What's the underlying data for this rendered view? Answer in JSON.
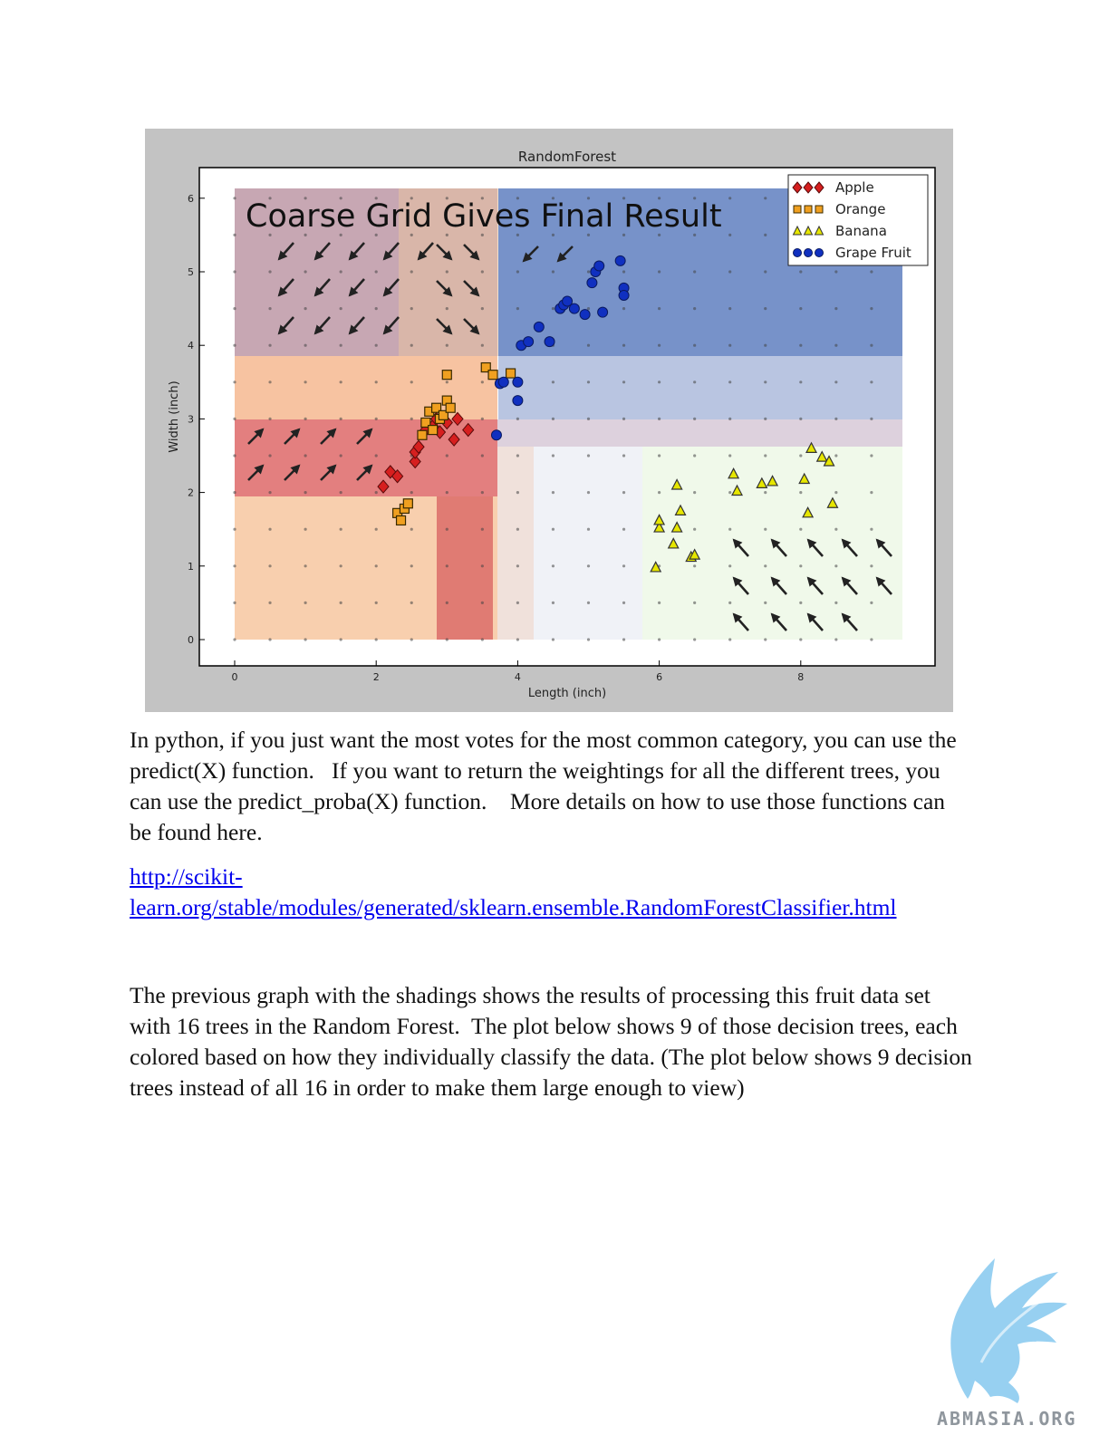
{
  "chart_data": {
    "type": "scatter",
    "title": "RandomForest",
    "overlay_text": "Coarse Grid Gives Final Result",
    "xlabel": "Length (inch)",
    "ylabel": "Width (inch)",
    "xlim": [
      -0.5,
      9.9
    ],
    "ylim": [
      -0.4,
      6.5
    ],
    "x_ticks": [
      0,
      2,
      4,
      6,
      8
    ],
    "y_ticks": [
      0,
      1,
      2,
      3,
      4,
      5,
      6
    ],
    "grid": false,
    "legend_position": "top-right",
    "legend": [
      "Apple",
      "Orange",
      "Banana",
      "Grape Fruit"
    ],
    "series": [
      {
        "name": "Apple",
        "marker": "diamond",
        "color": "#d61f1f",
        "points": [
          [
            2.1,
            2.08
          ],
          [
            2.2,
            2.28
          ],
          [
            2.3,
            2.22
          ],
          [
            2.55,
            2.42
          ],
          [
            2.55,
            2.55
          ],
          [
            2.6,
            2.62
          ],
          [
            2.7,
            2.85
          ],
          [
            2.8,
            2.9
          ],
          [
            2.85,
            3.0
          ],
          [
            2.9,
            2.82
          ],
          [
            3.0,
            2.95
          ],
          [
            3.1,
            2.72
          ],
          [
            3.15,
            3.0
          ],
          [
            3.3,
            2.85
          ]
        ]
      },
      {
        "name": "Orange",
        "marker": "square",
        "color": "#f0a020",
        "points": [
          [
            2.3,
            1.72
          ],
          [
            2.35,
            1.62
          ],
          [
            2.4,
            1.78
          ],
          [
            2.45,
            1.85
          ],
          [
            2.65,
            2.78
          ],
          [
            2.7,
            2.95
          ],
          [
            2.75,
            3.1
          ],
          [
            2.8,
            2.85
          ],
          [
            2.85,
            3.15
          ],
          [
            2.9,
            3.0
          ],
          [
            2.95,
            3.05
          ],
          [
            3.0,
            3.25
          ],
          [
            3.05,
            3.15
          ],
          [
            3.0,
            3.6
          ],
          [
            3.55,
            3.7
          ],
          [
            3.65,
            3.6
          ],
          [
            3.9,
            3.62
          ]
        ]
      },
      {
        "name": "Banana",
        "marker": "triangle",
        "color": "#e6e600",
        "points": [
          [
            5.95,
            0.98
          ],
          [
            6.0,
            1.52
          ],
          [
            6.0,
            1.62
          ],
          [
            6.2,
            1.3
          ],
          [
            6.25,
            1.52
          ],
          [
            6.25,
            2.1
          ],
          [
            6.3,
            1.75
          ],
          [
            6.45,
            1.12
          ],
          [
            6.5,
            1.15
          ],
          [
            7.05,
            2.25
          ],
          [
            7.1,
            2.02
          ],
          [
            7.45,
            2.12
          ],
          [
            7.6,
            2.15
          ],
          [
            8.05,
            2.18
          ],
          [
            8.1,
            1.72
          ],
          [
            8.15,
            2.6
          ],
          [
            8.3,
            2.48
          ],
          [
            8.4,
            2.42
          ],
          [
            8.45,
            1.85
          ]
        ]
      },
      {
        "name": "Grape Fruit",
        "marker": "circle",
        "color": "#1030c0",
        "points": [
          [
            3.7,
            2.78
          ],
          [
            3.75,
            3.48
          ],
          [
            3.8,
            3.5
          ],
          [
            4.0,
            3.25
          ],
          [
            4.0,
            3.5
          ],
          [
            4.05,
            4.0
          ],
          [
            4.15,
            4.05
          ],
          [
            4.3,
            4.25
          ],
          [
            4.45,
            4.05
          ],
          [
            4.6,
            4.5
          ],
          [
            4.65,
            4.55
          ],
          [
            4.7,
            4.6
          ],
          [
            4.8,
            4.5
          ],
          [
            4.95,
            4.42
          ],
          [
            5.05,
            4.85
          ],
          [
            5.1,
            5.0
          ],
          [
            5.15,
            5.08
          ],
          [
            5.2,
            4.45
          ],
          [
            5.45,
            5.15
          ],
          [
            5.5,
            4.78
          ],
          [
            5.5,
            4.68
          ]
        ]
      }
    ]
  },
  "text": {
    "paragraph1": "In python, if you just want the most votes for the most common category, you can use the predict(X) function.   If you want to return the weightings for all the different trees, you can use the predict_proba(X) function.    More details on how to use those functions can be found here.",
    "link_line1": "http://scikit-",
    "link_line2": "learn.org/stable/modules/generated/sklearn.ensemble.RandomForestClassifier.html",
    "paragraph2": "The previous graph with the shadings shows the results of processing this fruit data set with 16 trees in the Random Forest.  The plot below shows 9 of those decision trees, each colored based on how they individually classify the data. (The plot below shows 9 decision trees instead of all 16 in order to make them large enough to view)"
  },
  "logo": {
    "text": "ABMASIA.ORG",
    "color": "#7ec3ea"
  }
}
